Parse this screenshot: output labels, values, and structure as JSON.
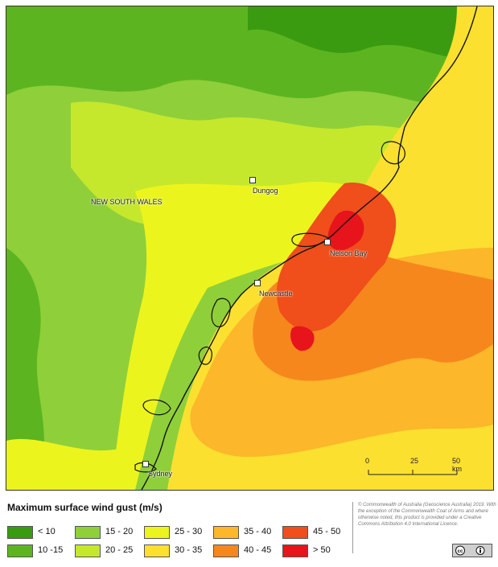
{
  "map": {
    "region_label": "NEW SOUTH WALES",
    "towns": [
      {
        "name": "Dungog"
      },
      {
        "name": "Nelson Bay"
      },
      {
        "name": "Newcastle"
      },
      {
        "name": "Sydney"
      }
    ],
    "scale_bar": {
      "ticks": [
        "0",
        "25",
        "50 km"
      ]
    }
  },
  "legend": {
    "title": "Maximum surface wind gust (m/s)",
    "items": [
      {
        "label": "< 10",
        "color": "#3a9b10"
      },
      {
        "label": "10 -15",
        "color": "#5cb520"
      },
      {
        "label": "15 - 20",
        "color": "#8fcf3a"
      },
      {
        "label": "20 - 25",
        "color": "#c5e82c"
      },
      {
        "label": "25 - 30",
        "color": "#ecf41e"
      },
      {
        "label": "30 - 35",
        "color": "#fbe030"
      },
      {
        "label": "35 - 40",
        "color": "#fcb72a"
      },
      {
        "label": "40 - 45",
        "color": "#f6871d"
      },
      {
        "label": "45 - 50",
        "color": "#f04e1a"
      },
      {
        "label": "> 50",
        "color": "#e7141c"
      }
    ]
  },
  "copyright": {
    "text": "© Commonwealth of Australia (Geoscience Australia) 2019. With the exception of the Commonwealth Coat of Arms and where otherwise noted, this product is provided under a Creative Commons Attribution 4.0 International Licence."
  }
}
